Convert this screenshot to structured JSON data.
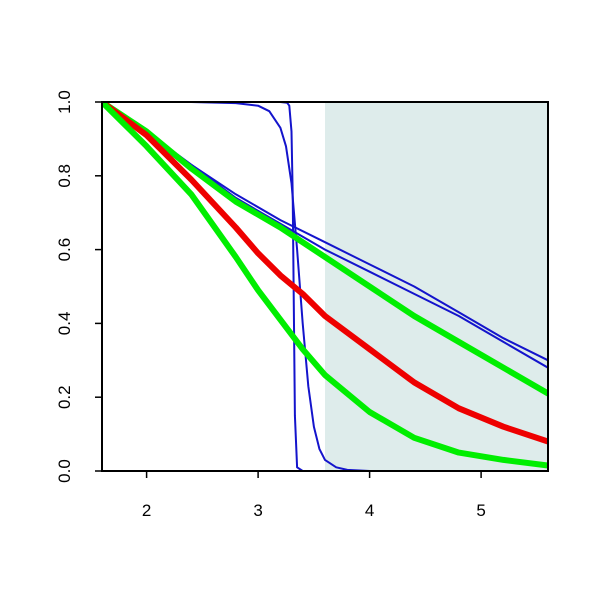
{
  "chart_data": {
    "type": "line",
    "title": "",
    "xlabel": "",
    "ylabel": "",
    "xlim": [
      1.6,
      5.6
    ],
    "ylim": [
      0,
      1
    ],
    "x_ticks": [
      {
        "value": 2,
        "label": "2"
      },
      {
        "value": 3,
        "label": "3"
      },
      {
        "value": 4,
        "label": "4"
      },
      {
        "value": 5,
        "label": "5"
      }
    ],
    "y_ticks": [
      {
        "value": 0,
        "label": "0.0"
      },
      {
        "value": 0.2,
        "label": "0.2"
      },
      {
        "value": 0.4,
        "label": "0.4"
      },
      {
        "value": 0.6,
        "label": "0.6"
      },
      {
        "value": 0.8,
        "label": "0.8"
      },
      {
        "value": 1,
        "label": "1.0"
      }
    ],
    "grid": false,
    "legend": "none",
    "shaded_region": {
      "x_from": 3.6,
      "x_to": 5.6,
      "color": "#deeceb"
    },
    "series": [
      {
        "color": "#1414cc",
        "width": "thin",
        "x": [
          1.6,
          2.0,
          2.4,
          2.8,
          3.0,
          3.2,
          3.26,
          3.28,
          3.3,
          3.31,
          3.32,
          3.33,
          3.35,
          3.4,
          3.6,
          4.0,
          5.0,
          5.6
        ],
        "y": [
          1.0,
          1.0,
          1.0,
          1.0,
          1.0,
          1.0,
          0.998,
          0.99,
          0.92,
          0.75,
          0.45,
          0.15,
          0.01,
          0.0,
          0.0,
          0.0,
          0.0,
          0.0
        ]
      },
      {
        "color": "#1414cc",
        "width": "thin",
        "x": [
          1.6,
          2.0,
          2.4,
          2.8,
          3.0,
          3.1,
          3.2,
          3.25,
          3.3,
          3.35,
          3.4,
          3.45,
          3.5,
          3.55,
          3.6,
          3.7,
          3.8,
          4.0,
          5.0,
          5.6
        ],
        "y": [
          1.0,
          1.0,
          1.0,
          0.997,
          0.99,
          0.975,
          0.93,
          0.88,
          0.78,
          0.6,
          0.4,
          0.23,
          0.12,
          0.06,
          0.03,
          0.01,
          0.003,
          0.0,
          0.0,
          0.0
        ]
      },
      {
        "color": "#1414cc",
        "width": "thin",
        "x": [
          1.6,
          2.0,
          2.4,
          2.8,
          3.2,
          3.6,
          4.0,
          4.4,
          4.8,
          5.2,
          5.6
        ],
        "y": [
          1.0,
          0.92,
          0.83,
          0.75,
          0.68,
          0.62,
          0.56,
          0.5,
          0.43,
          0.36,
          0.3
        ]
      },
      {
        "color": "#1414cc",
        "width": "thin",
        "x": [
          1.6,
          2.0,
          2.4,
          2.8,
          3.2,
          3.6,
          4.0,
          4.4,
          4.8,
          5.2,
          5.6
        ],
        "y": [
          1.0,
          0.91,
          0.83,
          0.74,
          0.67,
          0.6,
          0.54,
          0.48,
          0.42,
          0.35,
          0.28
        ]
      },
      {
        "color": "#00ee00",
        "width": "thick",
        "x": [
          1.6,
          2.0,
          2.4,
          2.8,
          3.2,
          3.6,
          4.0,
          4.4,
          4.8,
          5.2,
          5.6
        ],
        "y": [
          1.0,
          0.92,
          0.82,
          0.73,
          0.66,
          0.58,
          0.5,
          0.42,
          0.35,
          0.28,
          0.21
        ]
      },
      {
        "color": "#ee0000",
        "width": "thick",
        "x": [
          1.6,
          2.0,
          2.4,
          2.8,
          3.0,
          3.2,
          3.4,
          3.6,
          4.0,
          4.4,
          4.8,
          5.2,
          5.6
        ],
        "y": [
          1.0,
          0.91,
          0.79,
          0.66,
          0.59,
          0.53,
          0.48,
          0.42,
          0.33,
          0.24,
          0.17,
          0.12,
          0.08
        ]
      },
      {
        "color": "#00ee00",
        "width": "thick",
        "x": [
          1.6,
          2.0,
          2.4,
          2.8,
          3.0,
          3.2,
          3.4,
          3.6,
          4.0,
          4.4,
          4.8,
          5.2,
          5.6
        ],
        "y": [
          1.0,
          0.88,
          0.75,
          0.58,
          0.49,
          0.41,
          0.33,
          0.26,
          0.16,
          0.09,
          0.05,
          0.03,
          0.015
        ]
      }
    ]
  }
}
